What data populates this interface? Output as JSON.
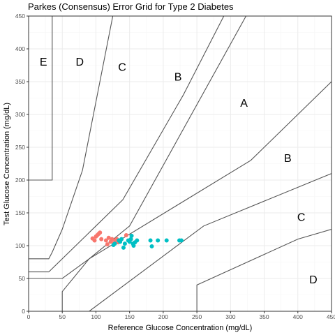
{
  "chart_data": {
    "type": "scatter",
    "title": "Parkes (Consensus) Error Grid for Type 2 Diabetes",
    "xlabel": "Reference Glucose Concentration (mg/dL)",
    "ylabel": "Test Glucose Concentration (mg/dL)",
    "xlim": [
      0,
      450
    ],
    "ylim": [
      0,
      450
    ],
    "xticks": [
      0,
      50,
      100,
      150,
      200,
      250,
      300,
      350,
      400,
      450
    ],
    "yticks": [
      0,
      50,
      100,
      150,
      200,
      250,
      300,
      350,
      400,
      450
    ],
    "grid": true,
    "legend": "none",
    "colors": {
      "series_a": "#F8766D",
      "series_b": "#00BFC4",
      "zone_line": "#555555",
      "grid_major": "#ebebeb",
      "grid_minor": "#f5f5f5"
    },
    "zone_boundaries": [
      [
        [
          0,
          50
        ],
        [
          50,
          50
        ],
        [
          90,
          80
        ],
        [
          330,
          230
        ],
        [
          450,
          350
        ]
      ],
      [
        [
          0,
          60
        ],
        [
          30,
          60
        ],
        [
          140,
          170
        ],
        [
          230,
          330
        ],
        [
          290,
          450
        ]
      ],
      [
        [
          0,
          80
        ],
        [
          30,
          80
        ],
        [
          35,
          90
        ],
        [
          50,
          125
        ],
        [
          80,
          215
        ],
        [
          125,
          450
        ]
      ],
      [
        [
          0,
          200
        ],
        [
          35,
          200
        ],
        [
          35,
          450
        ]
      ],
      [
        [
          50,
          0
        ],
        [
          50,
          30
        ],
        [
          90,
          80
        ],
        [
          150,
          130
        ],
        [
          350,
          500
        ]
      ],
      [
        [
          90,
          0
        ],
        [
          260,
          130
        ],
        [
          450,
          210
        ]
      ],
      [
        [
          250,
          0
        ],
        [
          250,
          40
        ],
        [
          400,
          110
        ],
        [
          450,
          125
        ]
      ]
    ],
    "zone_labels": [
      {
        "text": "E",
        "x": 22,
        "y": 381
      },
      {
        "text": "D",
        "x": 76,
        "y": 381
      },
      {
        "text": "C",
        "x": 139,
        "y": 373
      },
      {
        "text": "B",
        "x": 222,
        "y": 358
      },
      {
        "text": "A",
        "x": 320,
        "y": 318
      },
      {
        "text": "B",
        "x": 385,
        "y": 234
      },
      {
        "text": "C",
        "x": 405,
        "y": 144
      },
      {
        "text": "D",
        "x": 423,
        "y": 49
      }
    ],
    "series": [
      {
        "color": "#F8766D",
        "points": [
          [
            95,
            111
          ],
          [
            98,
            108
          ],
          [
            100,
            114
          ],
          [
            102,
            116
          ],
          [
            104,
            118
          ],
          [
            106,
            120
          ],
          [
            108,
            110
          ],
          [
            115,
            108
          ],
          [
            117,
            102
          ],
          [
            119,
            112
          ],
          [
            122,
            106
          ],
          [
            124,
            110
          ],
          [
            127,
            104
          ],
          [
            129,
            108
          ],
          [
            131,
            110
          ],
          [
            133,
            105
          ],
          [
            145,
            116
          ]
        ]
      },
      {
        "color": "#00BFC4",
        "points": [
          [
            126,
            101
          ],
          [
            128,
            103
          ],
          [
            134,
            108
          ],
          [
            136,
            106
          ],
          [
            138,
            110
          ],
          [
            141,
            97
          ],
          [
            143,
            103
          ],
          [
            148,
            108
          ],
          [
            150,
            106
          ],
          [
            152,
            110
          ],
          [
            153,
            115
          ],
          [
            155,
            103
          ],
          [
            156,
            100
          ],
          [
            158,
            105
          ],
          [
            161,
            108
          ],
          [
            181,
            108
          ],
          [
            183,
            99
          ],
          [
            192,
            108
          ],
          [
            205,
            108
          ],
          [
            224,
            108
          ],
          [
            227,
            108
          ]
        ]
      }
    ]
  }
}
